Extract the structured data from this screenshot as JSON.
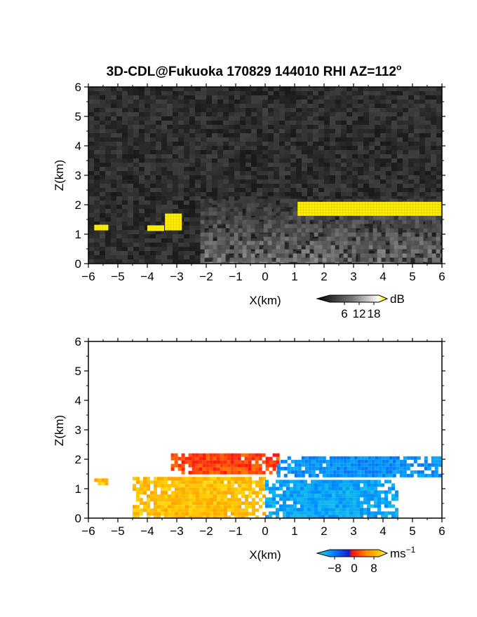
{
  "figure": {
    "title": "3D-CDL@Fukuoka 170829 144010 RHI AZ=112",
    "title_superscript": "o"
  },
  "chart_data": [
    {
      "type": "heatmap",
      "panel": "top",
      "quantity": "SNR",
      "xlabel": "X(km)",
      "ylabel": "Z(km)",
      "xlim": [
        -6,
        6
      ],
      "ylim": [
        0,
        6
      ],
      "xticks": [
        -6,
        -5,
        -4,
        -3,
        -2,
        -1,
        0,
        1,
        2,
        3,
        4,
        5,
        6
      ],
      "yticks": [
        0,
        1,
        2,
        3,
        4,
        5,
        6
      ],
      "xtick_labels": [
        "−6",
        "−5",
        "−4",
        "−3",
        "−2",
        "−1",
        "0",
        "1",
        "2",
        "3",
        "4",
        "5",
        "6"
      ],
      "ytick_labels": [
        "0",
        "1",
        "2",
        "3",
        "4",
        "5",
        "6"
      ],
      "colorbar": {
        "unit": "dB",
        "ticks": [
          6,
          12,
          18
        ],
        "tick_labels": [
          "6",
          "12",
          "18"
        ],
        "range": [
          0,
          20
        ]
      },
      "features": [
        {
          "name": "cloud base layer",
          "x_range": [
            1.1,
            6.0
          ],
          "z_range": [
            1.7,
            2.1
          ],
          "value_dB": 19
        },
        {
          "name": "cloud fragment",
          "x_range": [
            -3.4,
            -2.9
          ],
          "z_range": [
            1.15,
            1.7
          ],
          "value_dB": 19
        },
        {
          "name": "cloud fragment",
          "x_range": [
            -4.0,
            -3.5
          ],
          "z_range": [
            1.15,
            1.3
          ],
          "value_dB": 19
        },
        {
          "name": "cloud fragment",
          "x_range": [
            -5.8,
            -5.4
          ],
          "z_range": [
            1.2,
            1.32
          ],
          "value_dB": 19
        },
        {
          "name": "aerosol layer",
          "x_range": [
            -2.2,
            6.0
          ],
          "z_range": [
            0.0,
            2.2
          ],
          "value_dB": 9
        }
      ],
      "grid": false
    },
    {
      "type": "heatmap",
      "panel": "bottom",
      "quantity": "Doppler velocity",
      "xlabel": "X(km)",
      "ylabel": "Z(km)",
      "xlim": [
        -6,
        6
      ],
      "ylim": [
        0,
        6
      ],
      "xticks": [
        -6,
        -5,
        -4,
        -3,
        -2,
        -1,
        0,
        1,
        2,
        3,
        4,
        5,
        6
      ],
      "yticks": [
        0,
        1,
        2,
        3,
        4,
        5,
        6
      ],
      "xtick_labels": [
        "−6",
        "−5",
        "−4",
        "−3",
        "−2",
        "−1",
        "0",
        "1",
        "2",
        "3",
        "4",
        "5",
        "6"
      ],
      "ytick_labels": [
        "0",
        "1",
        "2",
        "3",
        "4",
        "5",
        "6"
      ],
      "colorbar": {
        "unit": "ms",
        "unit_superscript": "−1",
        "ticks": [
          -8,
          0,
          8
        ],
        "tick_labels": [
          "−8",
          "0",
          "8"
        ],
        "range": [
          -10,
          10
        ]
      },
      "features": [
        {
          "name": "upper layer approaching",
          "x_range": [
            -3.2,
            0.4
          ],
          "z_range": [
            1.5,
            2.2
          ],
          "value_ms": 2
        },
        {
          "name": "lower layer approaching",
          "x_range": [
            -4.5,
            0.0
          ],
          "z_range": [
            0.0,
            1.4
          ],
          "value_ms": 7
        },
        {
          "name": "upper layer receding",
          "x_range": [
            0.4,
            6.0
          ],
          "z_range": [
            1.5,
            2.1
          ],
          "value_ms": -6
        },
        {
          "name": "lower layer receding",
          "x_range": [
            0.0,
            4.5
          ],
          "z_range": [
            0.0,
            1.3
          ],
          "value_ms": -7
        },
        {
          "name": "isolated echo",
          "x_range": [
            -5.8,
            -5.4
          ],
          "z_range": [
            1.15,
            1.35
          ],
          "value_ms": 7
        }
      ],
      "grid": false
    }
  ]
}
